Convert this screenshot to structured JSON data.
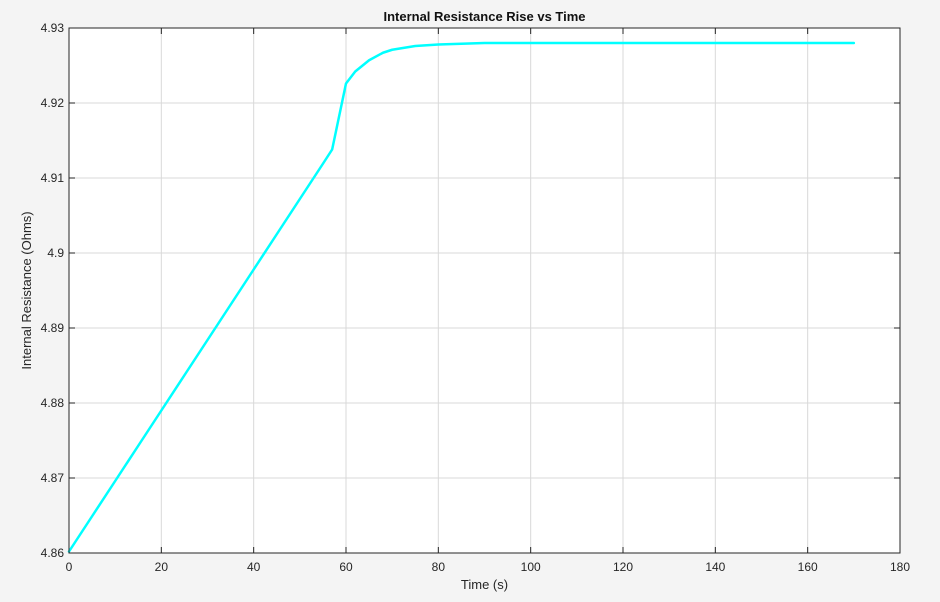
{
  "chart_data": {
    "type": "line",
    "title": "Internal Resistance Rise vs Time",
    "xlabel": "Time (s)",
    "ylabel": "Internal Resistance (Ohms)",
    "xlim": [
      0,
      180
    ],
    "ylim": [
      4.86,
      4.93
    ],
    "xticks": [
      0,
      20,
      40,
      60,
      80,
      100,
      120,
      140,
      160,
      180
    ],
    "xtick_labels": [
      "0",
      "20",
      "40",
      "60",
      "80",
      "100",
      "120",
      "140",
      "160",
      "180"
    ],
    "yticks": [
      4.86,
      4.87,
      4.88,
      4.89,
      4.9,
      4.91,
      4.92,
      4.93
    ],
    "ytick_labels": [
      "4.86",
      "4.87",
      "4.88",
      "4.89",
      "4.9",
      "4.91",
      "4.92",
      "4.93"
    ],
    "grid": true,
    "series": [
      {
        "color": "#00ffff",
        "x": [
          0,
          5,
          10,
          15,
          20,
          25,
          30,
          35,
          40,
          45,
          50,
          55,
          57,
          60,
          62,
          65,
          68,
          70,
          75,
          80,
          85,
          90,
          100,
          110,
          120,
          130,
          140,
          150,
          160,
          170
        ],
        "y": [
          4.8602,
          4.8649,
          4.8696,
          4.8743,
          4.879,
          4.8837,
          4.8884,
          4.8931,
          4.8978,
          4.9025,
          4.9072,
          4.9119,
          4.9138,
          4.9226,
          4.9242,
          4.9257,
          4.9267,
          4.9271,
          4.9276,
          4.9278,
          4.9279,
          4.928,
          4.928,
          4.928,
          4.928,
          4.928,
          4.928,
          4.928,
          4.928,
          4.928
        ]
      }
    ]
  }
}
